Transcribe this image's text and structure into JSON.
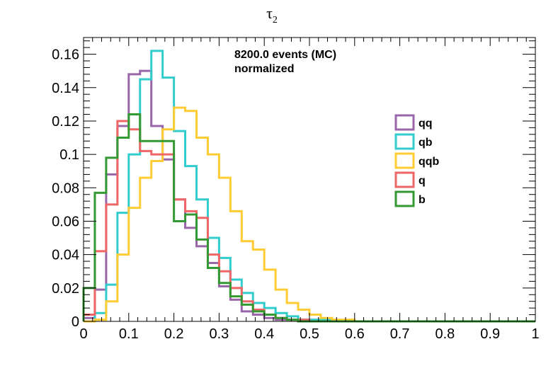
{
  "chart_data": {
    "type": "histogram",
    "title": "τ",
    "title_subscript": "2",
    "xlabel": "",
    "ylabel": "",
    "xlim": [
      0,
      1
    ],
    "ylim": [
      0,
      0.17
    ],
    "bin_width": 0.025,
    "bin_start": 0,
    "x_ticks": [
      "0",
      "0.1",
      "0.2",
      "0.3",
      "0.4",
      "0.5",
      "0.6",
      "0.7",
      "0.8",
      "0.9",
      "1"
    ],
    "y_ticks": [
      "0",
      "0.02",
      "0.04",
      "0.06",
      "0.08",
      "0.1",
      "0.12",
      "0.14",
      "0.16"
    ],
    "annotation_lines": [
      "8200.0 events (MC)",
      "normalized"
    ],
    "grid": false,
    "legend_position": "right",
    "series": [
      {
        "name": "qq",
        "color": "#9966aa",
        "values": [
          0.002,
          0.019,
          0.088,
          0.117,
          0.148,
          0.15,
          0.117,
          0.097,
          0.073,
          0.056,
          0.045,
          0.035,
          0.021,
          0.013,
          0.006,
          0.004,
          0.002,
          0.001,
          0.001,
          0,
          0,
          0,
          0,
          0,
          0,
          0,
          0,
          0,
          0,
          0,
          0,
          0,
          0,
          0,
          0,
          0,
          0,
          0,
          0,
          0
        ]
      },
      {
        "name": "qb",
        "color": "#33cccc",
        "values": [
          0.0,
          0.005,
          0.022,
          0.065,
          0.1,
          0.145,
          0.162,
          0.146,
          0.114,
          0.093,
          0.073,
          0.05,
          0.038,
          0.025,
          0.017,
          0.011,
          0.008,
          0.005,
          0.003,
          0.001,
          0.001,
          0.001,
          0,
          0,
          0,
          0,
          0,
          0,
          0,
          0,
          0,
          0,
          0,
          0,
          0,
          0,
          0,
          0,
          0,
          0
        ]
      },
      {
        "name": "qqb",
        "color": "#ffcc33",
        "values": [
          0.0,
          0.001,
          0.012,
          0.04,
          0.068,
          0.086,
          0.096,
          0.115,
          0.128,
          0.126,
          0.11,
          0.1,
          0.086,
          0.066,
          0.048,
          0.043,
          0.031,
          0.019,
          0.011,
          0.007,
          0.004,
          0.002,
          0.001,
          0.001,
          0,
          0,
          0,
          0,
          0,
          0,
          0,
          0,
          0,
          0,
          0,
          0,
          0,
          0,
          0,
          0
        ]
      },
      {
        "name": "q",
        "color": "#ee6666",
        "values": [
          0.004,
          0.042,
          0.07,
          0.12,
          0.115,
          0.102,
          0.1,
          0.1,
          0.073,
          0.066,
          0.062,
          0.04,
          0.03,
          0.02,
          0.012,
          0.007,
          0.004,
          0.002,
          0.001,
          0.001,
          0,
          0,
          0,
          0,
          0,
          0,
          0,
          0,
          0,
          0,
          0,
          0,
          0,
          0,
          0,
          0,
          0,
          0,
          0,
          0
        ]
      },
      {
        "name": "b",
        "color": "#339933",
        "values": [
          0.02,
          0.077,
          0.098,
          0.11,
          0.124,
          0.108,
          0.108,
          0.108,
          0.06,
          0.064,
          0.049,
          0.032,
          0.023,
          0.015,
          0.01,
          0.006,
          0.004,
          0.002,
          0.001,
          0,
          0,
          0,
          0,
          0,
          0,
          0,
          0,
          0,
          0,
          0,
          0,
          0,
          0,
          0,
          0,
          0,
          0,
          0,
          0,
          0
        ]
      }
    ]
  }
}
